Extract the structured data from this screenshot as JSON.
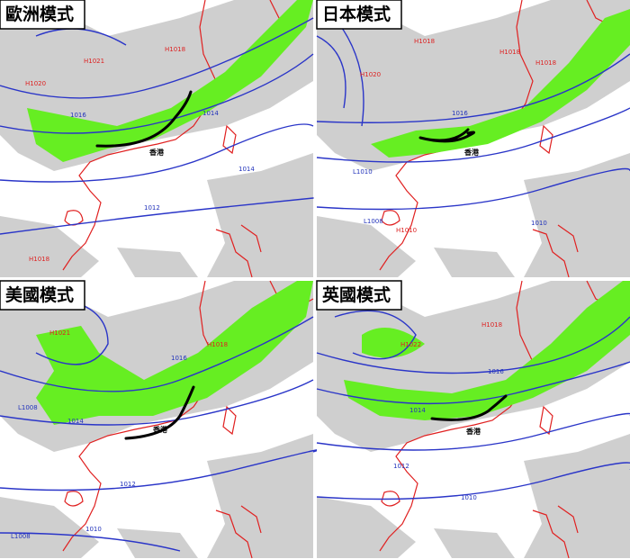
{
  "panels": [
    {
      "title": "歐洲模式",
      "labels": [
        "H1018",
        "H1021",
        "H1020",
        "1016",
        "1014",
        "1014",
        "1012",
        "H1018",
        "香港"
      ]
    },
    {
      "title": "日本模式",
      "labels": [
        "H1018",
        "H1018",
        "H1018",
        "H1020",
        "1016",
        "L1010",
        "L1008",
        "H1010",
        "1010",
        "香港"
      ]
    },
    {
      "title": "美國模式",
      "labels": [
        "H1021",
        "H1018",
        "L1008",
        "1016",
        "1014",
        "1012",
        "1010",
        "L1008",
        "香港"
      ]
    },
    {
      "title": "英國模式",
      "labels": [
        "H1018",
        "H1022",
        "1016",
        "1014",
        "1012",
        "1010",
        "香港"
      ]
    }
  ]
}
